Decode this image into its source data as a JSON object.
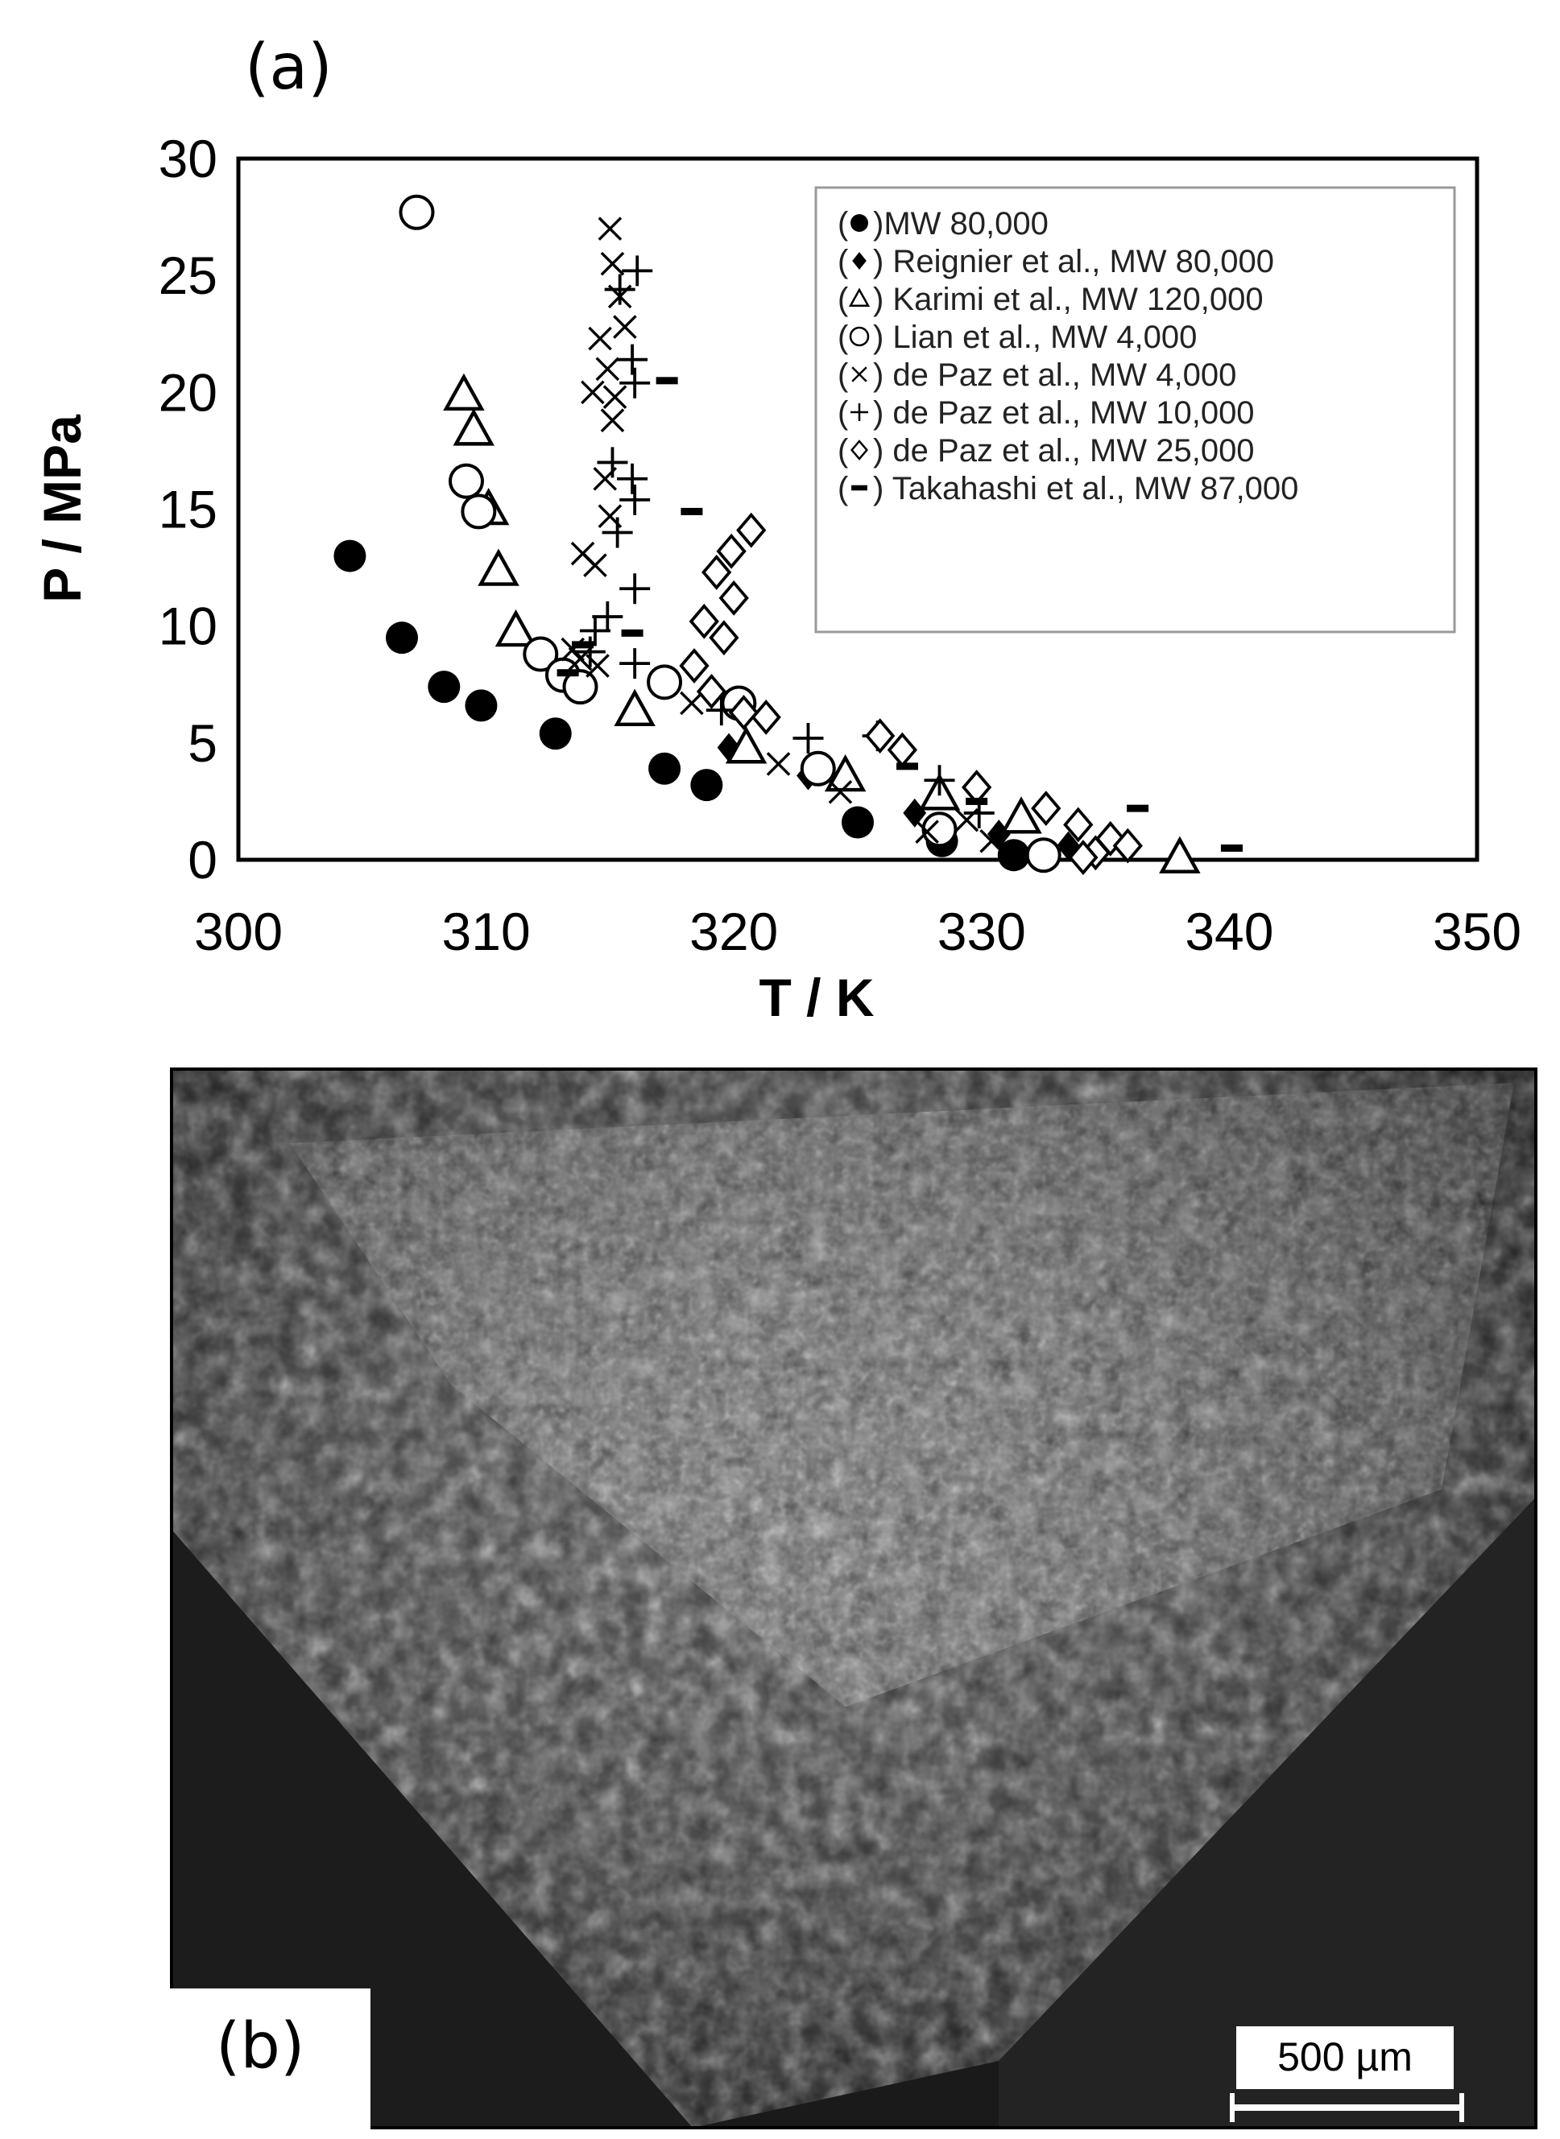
{
  "figure": {
    "panel_a_label": "(a)",
    "panel_b_label": "(b)",
    "scale_bar_label": "500 µm"
  },
  "chart_data": {
    "type": "scatter",
    "xlabel": "T / K",
    "ylabel": "P / MPa",
    "xlim": [
      300,
      350
    ],
    "ylim": [
      0,
      30
    ],
    "xticks": [
      "300",
      "310",
      "320",
      "330",
      "340",
      "350"
    ],
    "yticks": [
      "0",
      "5",
      "10",
      "15",
      "20",
      "25",
      "30"
    ],
    "grid": false,
    "legend_position": "top-right",
    "series": [
      {
        "name": "(•) MW 80,000",
        "marker": "filled-circle",
        "x": [
          304.5,
          306.6,
          308.3,
          309.8,
          312.8,
          317.2,
          318.9,
          325.0,
          328.4,
          331.3
        ],
        "y": [
          13.0,
          9.5,
          7.4,
          6.6,
          5.4,
          3.9,
          3.2,
          1.6,
          0.8,
          0.2
        ]
      },
      {
        "name": "Reignier et al., MW 80,000",
        "marker": "filled-diamond",
        "x": [
          319.8,
          323.0,
          327.3,
          330.7,
          333.5
        ],
        "y": [
          4.8,
          3.6,
          2.0,
          1.1,
          0.6
        ]
      },
      {
        "name": "Karimi et al., MW 120,000",
        "marker": "open-triangle",
        "x": [
          309.1,
          309.5,
          310.1,
          310.5,
          311.2,
          316.0,
          320.5,
          324.5,
          328.3,
          331.6,
          338.0
        ],
        "y": [
          19.9,
          18.4,
          15.0,
          12.4,
          9.8,
          6.4,
          4.8,
          3.6,
          2.8,
          1.8,
          0.1
        ]
      },
      {
        "name": "Lian et al., MW 4,000",
        "marker": "open-circle",
        "x": [
          307.2,
          309.2,
          309.7,
          312.2,
          313.1,
          313.8,
          317.2,
          320.2,
          323.4,
          328.3,
          332.5
        ],
        "y": [
          27.7,
          16.2,
          14.9,
          8.8,
          7.9,
          7.4,
          7.6,
          6.7,
          3.9,
          1.3,
          0.2
        ]
      },
      {
        "name": "de Paz et al., MW 4,000",
        "marker": "x",
        "x": [
          315.0,
          315.1,
          315.4,
          315.6,
          314.6,
          314.9,
          315.2,
          314.3,
          315.1,
          314.8,
          315.0,
          313.9,
          314.4,
          313.5,
          313.8,
          314.5,
          318.3,
          321.8,
          324.3,
          327.8,
          329.4,
          330.4
        ],
        "y": [
          27.0,
          25.5,
          24.1,
          22.8,
          22.3,
          21.0,
          19.8,
          20.0,
          18.8,
          16.3,
          14.7,
          13.1,
          12.6,
          9.0,
          8.6,
          8.3,
          6.7,
          4.1,
          2.9,
          1.2,
          1.7,
          0.8
        ]
      },
      {
        "name": "de Paz et al., MW 10,000",
        "marker": "plus",
        "x": [
          316.1,
          315.4,
          315.9,
          316.0,
          315.1,
          315.9,
          316.0,
          315.3,
          316.0,
          314.9,
          314.4,
          314.2,
          316.0,
          319.5,
          323.0,
          325.8,
          328.3,
          329.9
        ],
        "y": [
          25.2,
          24.4,
          21.4,
          20.4,
          17.0,
          16.3,
          15.4,
          14.0,
          11.6,
          10.4,
          9.8,
          8.9,
          8.4,
          6.4,
          5.2,
          5.3,
          3.4,
          2.0
        ]
      },
      {
        "name": "de Paz et al., MW 25,000",
        "marker": "open-diamond",
        "x": [
          320.7,
          319.9,
          319.3,
          320.0,
          318.8,
          319.6,
          318.4,
          319.1,
          320.4,
          321.3,
          325.9,
          326.8,
          329.8,
          332.6,
          333.9,
          335.2,
          335.9,
          334.6,
          334.1
        ],
        "y": [
          14.1,
          13.2,
          12.3,
          11.2,
          10.2,
          9.5,
          8.3,
          7.2,
          6.3,
          6.1,
          5.3,
          4.7,
          3.1,
          2.2,
          1.5,
          0.9,
          0.6,
          0.3,
          0.1
        ]
      },
      {
        "name": "Takahashi et al., MW 87,000",
        "marker": "dash",
        "x": [
          317.3,
          315.9,
          313.9,
          313.3,
          318.3,
          327.0,
          329.8,
          336.3,
          340.1
        ],
        "y": [
          20.5,
          9.7,
          9.2,
          8.0,
          14.9,
          4.0,
          2.5,
          2.2,
          0.5
        ]
      }
    ]
  }
}
